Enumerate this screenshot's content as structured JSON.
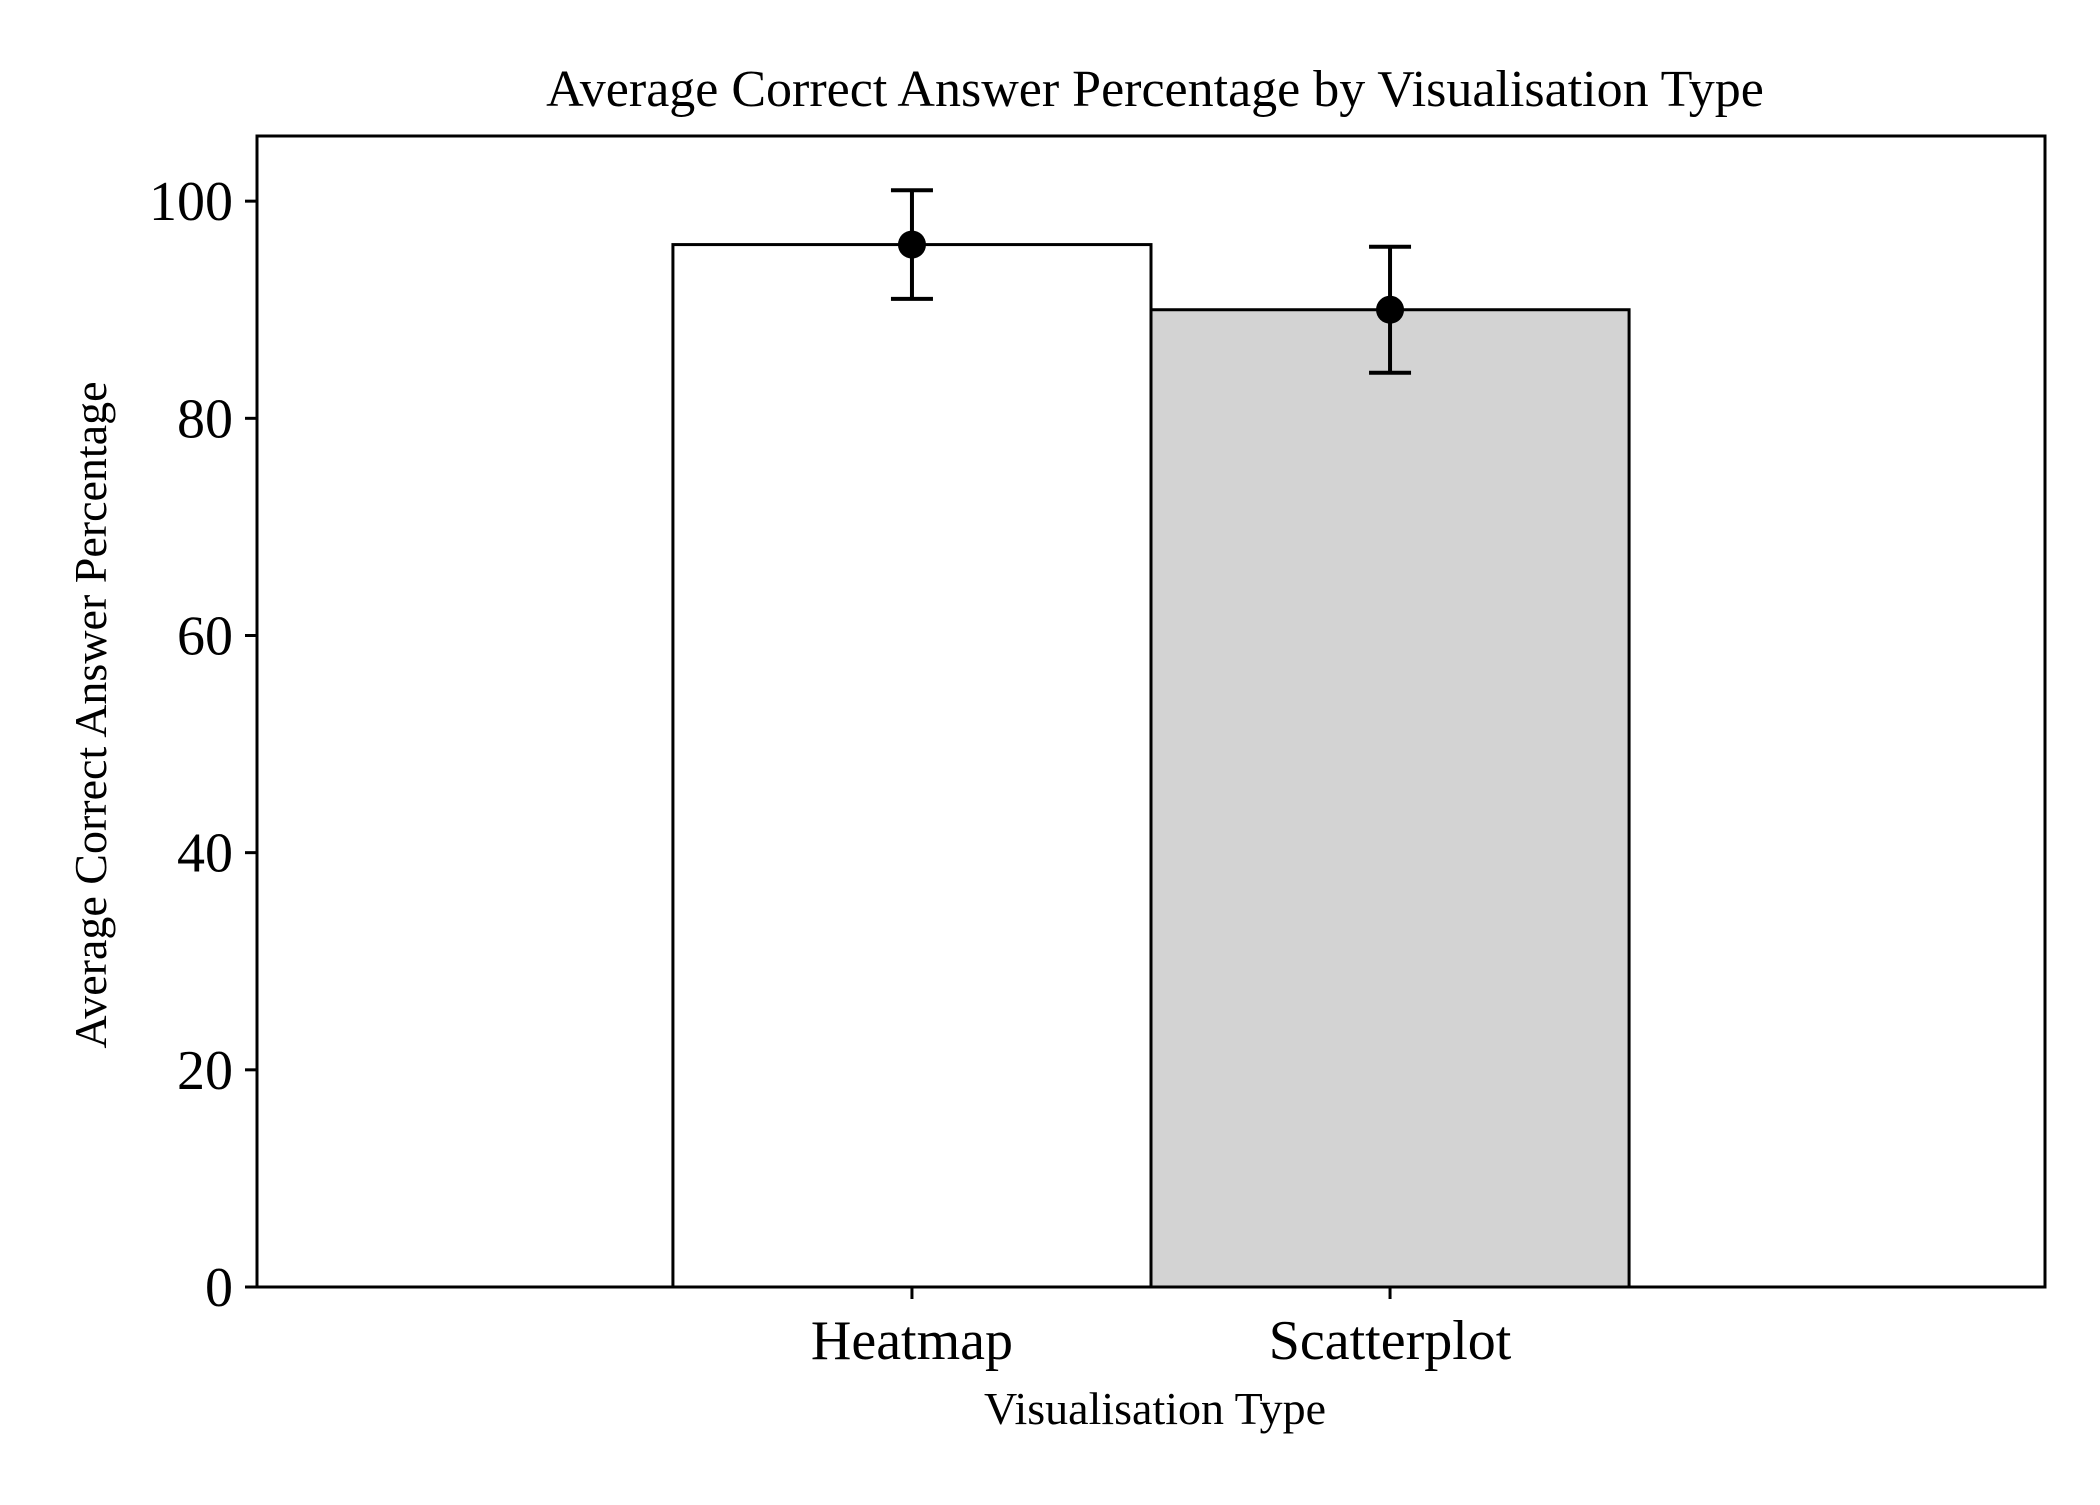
{
  "chart_data": {
    "type": "bar",
    "title": "Average Correct Answer Percentage by Visualisation Type",
    "xlabel": "Visualisation Type",
    "ylabel": "Average Correct Answer Percentage",
    "categories": [
      "Heatmap",
      "Scatterplot"
    ],
    "values": [
      96,
      90
    ],
    "error": [
      5,
      5.8
    ],
    "bar_colors": [
      "#ffffff",
      "#d3d3d3"
    ],
    "edge_color": "#000000",
    "marker_color": "#000000",
    "ylim": [
      0,
      106
    ],
    "yticks": [
      0,
      20,
      40,
      60,
      80,
      100
    ],
    "ytick_labels": [
      "0",
      "20",
      "40",
      "60",
      "80",
      "100"
    ],
    "grid": false,
    "legend": "none"
  }
}
